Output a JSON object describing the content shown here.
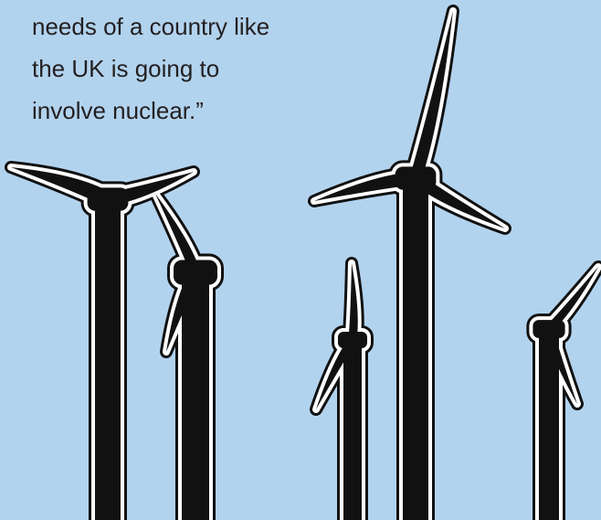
{
  "quote": {
    "lines": [
      "needs of a country like",
      "the UK is going to",
      "involve nuclear.”"
    ]
  }
}
